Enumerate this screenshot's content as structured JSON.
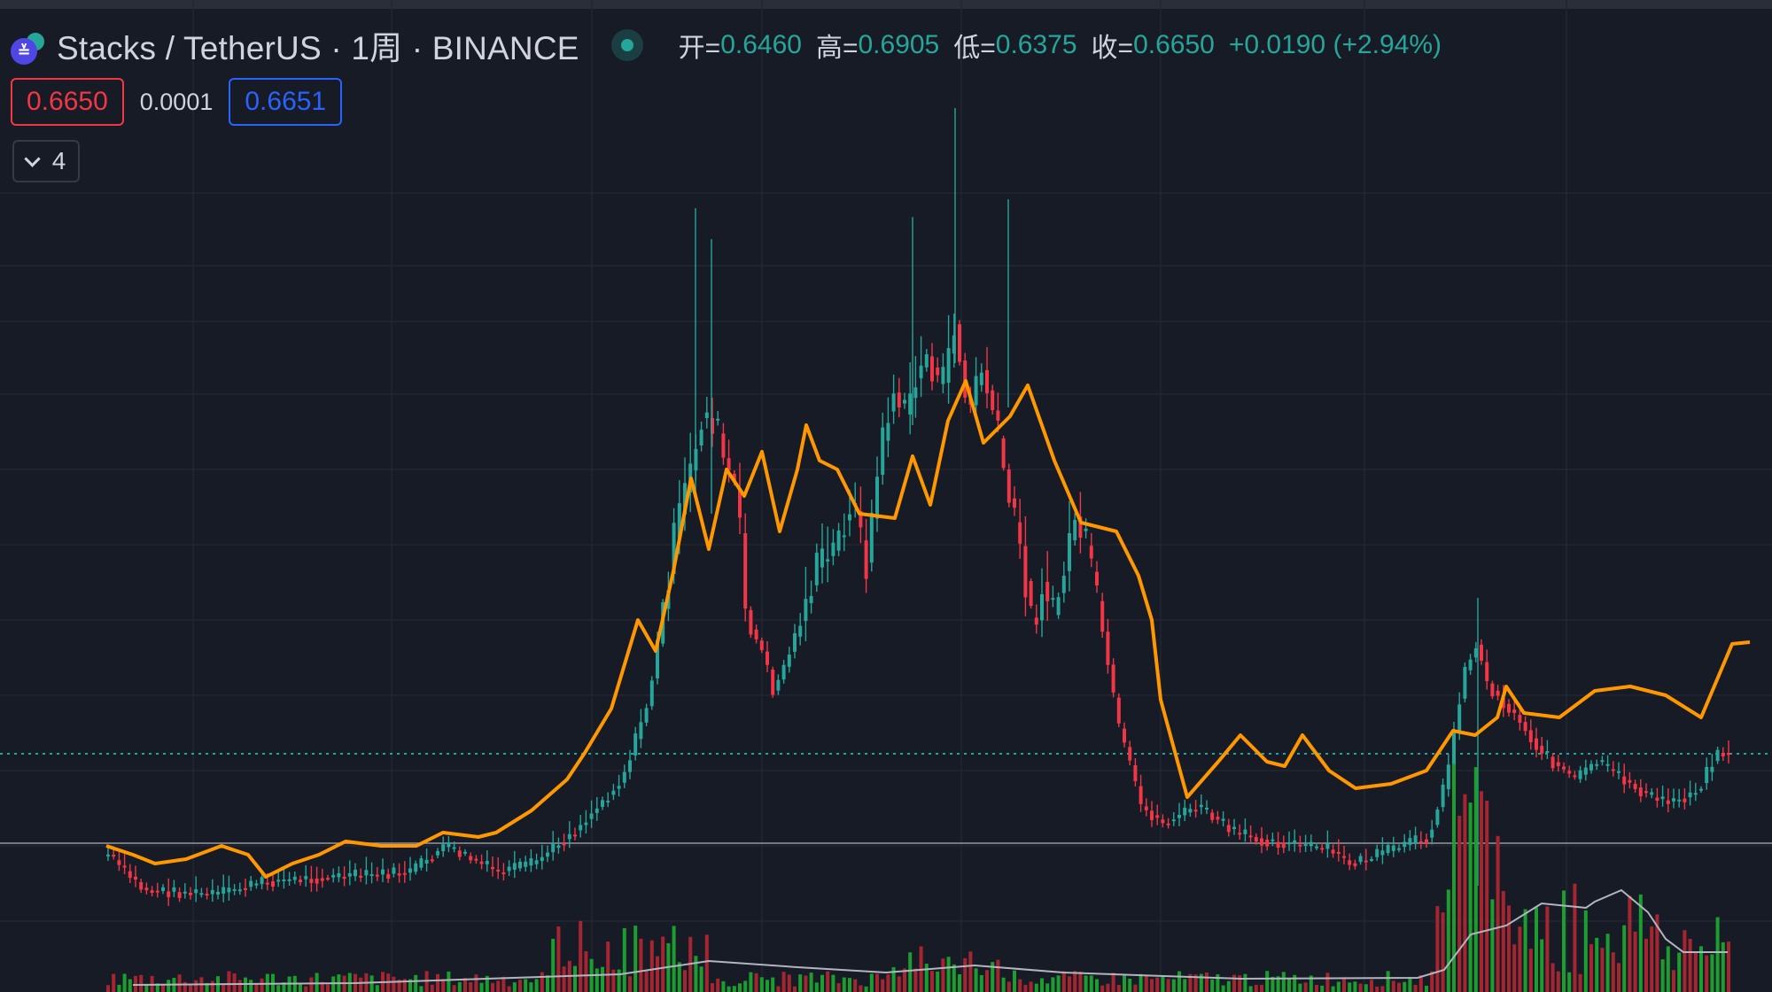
{
  "header": {
    "symbol": "Stacks / TetherUS · 1周 · BINANCE",
    "logo_icon": "stacks-coin-icon",
    "ohlc": {
      "open_label": "开=",
      "open": "0.6460",
      "high_label": "高=",
      "high": "0.6905",
      "low_label": "低=",
      "low": "0.6375",
      "close_label": "收=",
      "close": "0.6650",
      "change": "+0.0190 (+2.94%)"
    }
  },
  "price_row": {
    "sell": "0.6650",
    "spread": "0.0001",
    "buy": "0.6651"
  },
  "indicators": {
    "collapsed_count": "4"
  },
  "colors": {
    "background": "#171b26",
    "up": "#26a69a",
    "down": "#f23645",
    "ma_line": "#ff9800",
    "volume_up": "#1b9e2f",
    "volume_down": "#a52630",
    "volume_ma": "#b2b5be"
  }
}
